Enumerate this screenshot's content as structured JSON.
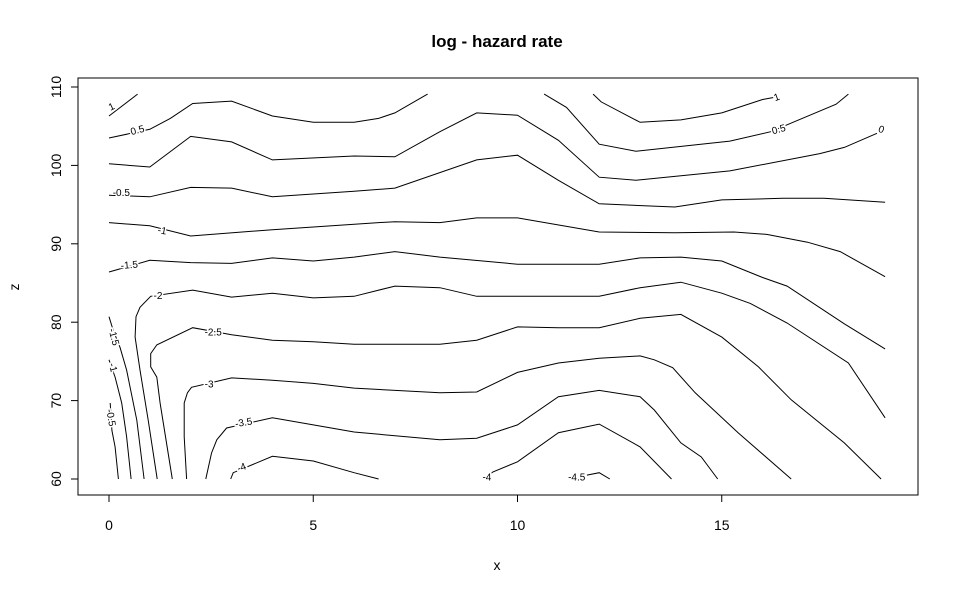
{
  "chart_data": {
    "type": "contour",
    "title": "log - hazard rate",
    "xlabel": "x",
    "ylabel": "z",
    "xlim": [
      0,
      19
    ],
    "ylim": [
      60,
      110
    ],
    "x_ticks": [
      "0",
      "5",
      "10",
      "15"
    ],
    "y_ticks": [
      "60",
      "70",
      "80",
      "90",
      "100",
      "110"
    ],
    "grid": false,
    "contours": [
      {
        "level": "1",
        "points": [
          [
            0,
            106.3
          ],
          [
            0.7,
            109.1
          ]
        ]
      },
      {
        "level": "1",
        "points": [
          [
            11.85,
            109.1
          ],
          [
            12.05,
            108.1
          ],
          [
            13,
            105.5
          ],
          [
            14,
            105.8
          ],
          [
            15,
            106.7
          ],
          [
            16,
            108.4
          ],
          [
            16.3,
            108.7
          ]
        ]
      },
      {
        "level": "0.5",
        "points": [
          [
            0,
            103.5
          ],
          [
            1,
            104.6
          ],
          [
            1.5,
            106
          ],
          [
            2.05,
            107.9
          ],
          [
            3,
            108.2
          ],
          [
            4,
            106.3
          ],
          [
            5,
            105.5
          ],
          [
            6,
            105.5
          ],
          [
            6.6,
            106
          ],
          [
            7,
            106.7
          ],
          [
            7.8,
            109.1
          ]
        ]
      },
      {
        "level": "0.5",
        "points": [
          [
            10.65,
            109.1
          ],
          [
            11.2,
            107.4
          ],
          [
            12,
            102.7
          ],
          [
            12.9,
            101.8
          ],
          [
            15.2,
            103.1
          ],
          [
            16.2,
            104.3
          ],
          [
            16.7,
            105.4
          ],
          [
            17.8,
            107.8
          ],
          [
            18.1,
            109.1
          ]
        ]
      },
      {
        "level": "0",
        "points": [
          [
            0,
            100.2
          ],
          [
            1,
            99.8
          ],
          [
            2,
            103.7
          ],
          [
            3,
            103
          ],
          [
            4,
            100.7
          ],
          [
            6,
            101.2
          ],
          [
            7,
            101.1
          ],
          [
            8.1,
            104.3
          ],
          [
            9,
            106.7
          ],
          [
            10,
            106.4
          ],
          [
            11,
            103.2
          ],
          [
            12,
            98.5
          ],
          [
            12.9,
            98.1
          ],
          [
            15.2,
            99.3
          ],
          [
            17.4,
            101.5
          ],
          [
            18,
            102.3
          ],
          [
            18.8,
            104.1
          ]
        ]
      },
      {
        "level": "-0.5",
        "points": [
          [
            0,
            96.2
          ],
          [
            1,
            96
          ],
          [
            2,
            97.2
          ],
          [
            3,
            97.1
          ],
          [
            4,
            96
          ],
          [
            6,
            96.7
          ],
          [
            7,
            97.1
          ],
          [
            9,
            100.7
          ],
          [
            10,
            101.3
          ],
          [
            11,
            98.1
          ],
          [
            12,
            95.1
          ],
          [
            13.85,
            94.7
          ],
          [
            15,
            95.6
          ],
          [
            16.5,
            95.8
          ],
          [
            17.5,
            95.8
          ],
          [
            19,
            95.3
          ]
        ]
      },
      {
        "level": "-1",
        "points": [
          [
            0,
            92.7
          ],
          [
            1,
            92.3
          ],
          [
            2,
            91
          ],
          [
            4,
            91.8
          ],
          [
            6.6,
            92.7
          ],
          [
            7,
            92.8
          ],
          [
            8.1,
            92.7
          ],
          [
            9,
            93.3
          ],
          [
            10,
            93.3
          ],
          [
            12,
            91.5
          ],
          [
            13.85,
            91.4
          ],
          [
            15.3,
            91.5
          ],
          [
            16.1,
            91.2
          ],
          [
            17.1,
            90.2
          ],
          [
            17.9,
            89
          ],
          [
            19,
            85.8
          ]
        ]
      },
      {
        "level": "-1.5",
        "points": [
          [
            0,
            86.4
          ],
          [
            1,
            87.9
          ],
          [
            2,
            87.6
          ],
          [
            3,
            87.5
          ],
          [
            4,
            88.2
          ],
          [
            5,
            87.8
          ],
          [
            6,
            88.3
          ],
          [
            7,
            89
          ],
          [
            8.1,
            88.3
          ],
          [
            10,
            87.4
          ],
          [
            12,
            87.4
          ],
          [
            13,
            88.2
          ],
          [
            14,
            88.3
          ],
          [
            15,
            87.8
          ],
          [
            16,
            85.7
          ],
          [
            16.6,
            84.6
          ],
          [
            18,
            79.8
          ],
          [
            19,
            76.6
          ]
        ]
      },
      {
        "level": "-2",
        "points": [
          [
            1.18,
            60
          ],
          [
            0.96,
            67.5
          ],
          [
            0.76,
            73.9
          ],
          [
            0.64,
            78.1
          ],
          [
            0.66,
            80.7
          ],
          [
            0.76,
            81.9
          ],
          [
            1.02,
            83.3
          ],
          [
            2.05,
            84.1
          ],
          [
            3,
            83.2
          ],
          [
            4,
            83.7
          ],
          [
            5,
            83.1
          ],
          [
            6,
            83.3
          ],
          [
            7,
            84.6
          ],
          [
            8.1,
            84.4
          ],
          [
            9,
            83.3
          ],
          [
            10,
            83.3
          ],
          [
            12,
            83.3
          ],
          [
            13,
            84.4
          ],
          [
            14,
            85.1
          ],
          [
            15,
            83.7
          ],
          [
            15.7,
            82.4
          ],
          [
            16.6,
            79.9
          ],
          [
            18.1,
            74.8
          ],
          [
            19,
            67.8
          ]
        ]
      },
      {
        "level": "-2.5",
        "points": [
          [
            1.55,
            60
          ],
          [
            1.25,
            69.7
          ],
          [
            1.17,
            73
          ],
          [
            1.02,
            74.3
          ],
          [
            1.02,
            76
          ],
          [
            1.17,
            77.1
          ],
          [
            2.05,
            79.3
          ],
          [
            3,
            78.4
          ],
          [
            4,
            77.7
          ],
          [
            5,
            77.5
          ],
          [
            6,
            77.2
          ],
          [
            8.1,
            77.2
          ],
          [
            9,
            77.7
          ],
          [
            10,
            79.4
          ],
          [
            11,
            79.3
          ],
          [
            12,
            79.3
          ],
          [
            13,
            80.5
          ],
          [
            14,
            81
          ],
          [
            15,
            78.1
          ],
          [
            15.9,
            74.3
          ],
          [
            16.7,
            70.1
          ],
          [
            18,
            64.6
          ],
          [
            18.9,
            60
          ]
        ]
      },
      {
        "level": "-3",
        "points": [
          [
            1.9,
            60
          ],
          [
            1.84,
            65.4
          ],
          [
            1.84,
            69.7
          ],
          [
            1.92,
            71
          ],
          [
            2.02,
            71.7
          ],
          [
            3,
            72.9
          ],
          [
            4,
            72.6
          ],
          [
            5,
            72.2
          ],
          [
            6,
            71.6
          ],
          [
            8.1,
            71
          ],
          [
            9,
            71.1
          ],
          [
            10,
            73.6
          ],
          [
            11,
            74.8
          ],
          [
            12,
            75.4
          ],
          [
            13,
            75.7
          ],
          [
            13.35,
            75.2
          ],
          [
            13.8,
            74.2
          ],
          [
            14.35,
            71
          ],
          [
            15.4,
            65.9
          ],
          [
            16.7,
            60
          ]
        ]
      },
      {
        "level": "-3.5",
        "points": [
          [
            2.37,
            60
          ],
          [
            2.51,
            63.3
          ],
          [
            2.64,
            65
          ],
          [
            2.88,
            66.5
          ],
          [
            4,
            67.8
          ],
          [
            5,
            66.9
          ],
          [
            6,
            66
          ],
          [
            8.1,
            65
          ],
          [
            9,
            65.2
          ],
          [
            10,
            66.9
          ],
          [
            11,
            70.5
          ],
          [
            12,
            71.3
          ],
          [
            13,
            70.5
          ],
          [
            13.35,
            68.8
          ],
          [
            14,
            64.6
          ],
          [
            14.5,
            62.8
          ],
          [
            14.9,
            60
          ]
        ]
      },
      {
        "level": "-4",
        "points": [
          [
            2.98,
            60
          ],
          [
            3.04,
            60.8
          ],
          [
            4,
            62.9
          ],
          [
            5,
            62.3
          ],
          [
            6,
            60.8
          ],
          [
            6.6,
            60
          ]
        ]
      },
      {
        "level": "-4",
        "points": [
          [
            9.2,
            60.2
          ],
          [
            9.4,
            60.9
          ],
          [
            10,
            62.2
          ],
          [
            11,
            65.9
          ],
          [
            12,
            67
          ],
          [
            13,
            64.1
          ],
          [
            13.77,
            60
          ]
        ]
      },
      {
        "level": "-4.5",
        "points": [
          [
            11.7,
            60.5
          ],
          [
            12,
            60.8
          ],
          [
            12.26,
            60
          ]
        ]
      },
      {
        "level": "-1.5",
        "points": [
          [
            0,
            80.7
          ],
          [
            0.1,
            79
          ],
          [
            0.27,
            76.8
          ],
          [
            0.43,
            73.9
          ],
          [
            0.68,
            67.5
          ],
          [
            0.86,
            60
          ]
        ]
      },
      {
        "level": "-1",
        "points": [
          [
            0,
            75.2
          ],
          [
            0.15,
            73
          ],
          [
            0.31,
            69.7
          ],
          [
            0.43,
            65.4
          ],
          [
            0.54,
            60
          ]
        ]
      },
      {
        "level": "-0.5",
        "points": [
          [
            0.03,
            69.7
          ],
          [
            0.07,
            66.2
          ],
          [
            0.15,
            64.1
          ],
          [
            0.23,
            60
          ]
        ]
      }
    ]
  }
}
